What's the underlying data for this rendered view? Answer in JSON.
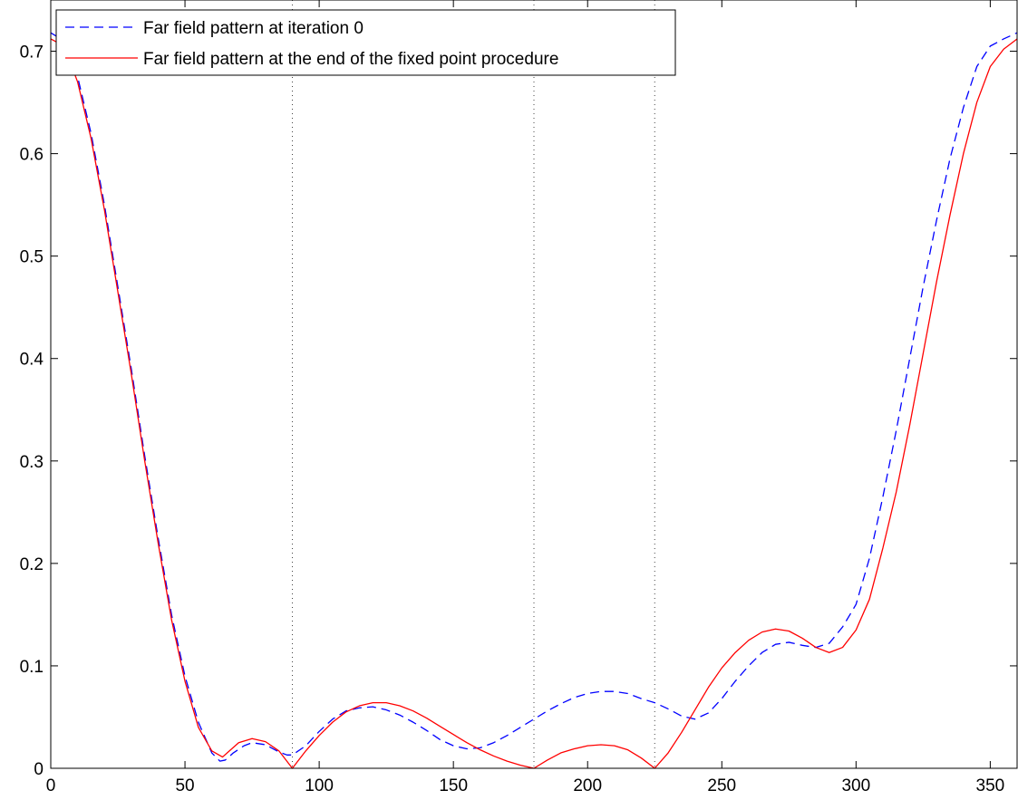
{
  "chart_data": {
    "type": "line",
    "title": "",
    "xlabel": "",
    "ylabel": "",
    "xlim": [
      0,
      360
    ],
    "ylim": [
      0,
      0.75
    ],
    "xticks": [
      0,
      50,
      100,
      150,
      200,
      250,
      300,
      350
    ],
    "yticks": [
      0,
      0.1,
      0.2,
      0.3,
      0.4,
      0.5,
      0.6,
      0.7
    ],
    "xtick_labels": [
      "0",
      "50",
      "100",
      "150",
      "200",
      "250",
      "300",
      "350"
    ],
    "ytick_labels": [
      "0",
      "0.1",
      "0.2",
      "0.3",
      "0.4",
      "0.5",
      "0.6",
      "0.7"
    ],
    "grid": false,
    "legend_position": "top-left",
    "vlines": [
      90,
      180,
      225
    ],
    "series": [
      {
        "name": "Far field pattern at iteration 0",
        "style": "dashed",
        "color": "#0000ff",
        "x": [
          0,
          5,
          10,
          15,
          20,
          25,
          30,
          35,
          40,
          45,
          50,
          55,
          60,
          63,
          65,
          68,
          72,
          75,
          80,
          85,
          88,
          90,
          95,
          100,
          105,
          110,
          115,
          120,
          125,
          130,
          135,
          140,
          145,
          150,
          155,
          160,
          165,
          170,
          175,
          180,
          185,
          190,
          195,
          200,
          205,
          210,
          215,
          220,
          225,
          230,
          235,
          240,
          245,
          250,
          255,
          260,
          265,
          270,
          275,
          280,
          285,
          290,
          295,
          300,
          305,
          310,
          315,
          320,
          325,
          330,
          335,
          340,
          345,
          350,
          355,
          360
        ],
        "y": [
          0.718,
          0.71,
          0.675,
          0.62,
          0.55,
          0.47,
          0.39,
          0.305,
          0.225,
          0.15,
          0.09,
          0.045,
          0.015,
          0.007,
          0.008,
          0.015,
          0.022,
          0.025,
          0.023,
          0.016,
          0.013,
          0.013,
          0.022,
          0.036,
          0.048,
          0.056,
          0.059,
          0.06,
          0.057,
          0.052,
          0.045,
          0.037,
          0.028,
          0.022,
          0.019,
          0.02,
          0.025,
          0.032,
          0.04,
          0.048,
          0.056,
          0.063,
          0.069,
          0.073,
          0.075,
          0.075,
          0.073,
          0.068,
          0.064,
          0.058,
          0.051,
          0.048,
          0.054,
          0.068,
          0.085,
          0.1,
          0.113,
          0.121,
          0.123,
          0.12,
          0.118,
          0.122,
          0.138,
          0.16,
          0.205,
          0.265,
          0.33,
          0.4,
          0.47,
          0.535,
          0.595,
          0.645,
          0.685,
          0.705,
          0.712,
          0.718
        ]
      },
      {
        "name": "Far field pattern at the end of the fixed point procedure",
        "style": "solid",
        "color": "#ff0000",
        "x": [
          0,
          5,
          10,
          15,
          20,
          25,
          30,
          35,
          40,
          45,
          50,
          55,
          60,
          64,
          67,
          70,
          75,
          80,
          85,
          90,
          95,
          100,
          105,
          110,
          115,
          120,
          125,
          130,
          135,
          140,
          145,
          150,
          155,
          160,
          165,
          170,
          175,
          180,
          185,
          190,
          195,
          200,
          205,
          210,
          215,
          220,
          225,
          230,
          235,
          240,
          245,
          250,
          255,
          260,
          265,
          270,
          275,
          280,
          285,
          290,
          295,
          300,
          305,
          310,
          315,
          320,
          325,
          330,
          335,
          340,
          345,
          350,
          355,
          360
        ],
        "y": [
          0.712,
          0.705,
          0.67,
          0.615,
          0.545,
          0.465,
          0.385,
          0.3,
          0.22,
          0.145,
          0.085,
          0.04,
          0.017,
          0.011,
          0.018,
          0.025,
          0.029,
          0.026,
          0.017,
          0.0,
          0.017,
          0.032,
          0.045,
          0.055,
          0.061,
          0.064,
          0.064,
          0.061,
          0.056,
          0.049,
          0.041,
          0.033,
          0.025,
          0.018,
          0.012,
          0.007,
          0.003,
          0.0,
          0.008,
          0.015,
          0.019,
          0.022,
          0.023,
          0.022,
          0.018,
          0.01,
          0.0,
          0.015,
          0.035,
          0.057,
          0.079,
          0.098,
          0.113,
          0.125,
          0.133,
          0.136,
          0.134,
          0.127,
          0.118,
          0.113,
          0.118,
          0.135,
          0.165,
          0.215,
          0.27,
          0.335,
          0.405,
          0.475,
          0.54,
          0.6,
          0.65,
          0.685,
          0.702,
          0.712
        ]
      }
    ]
  }
}
